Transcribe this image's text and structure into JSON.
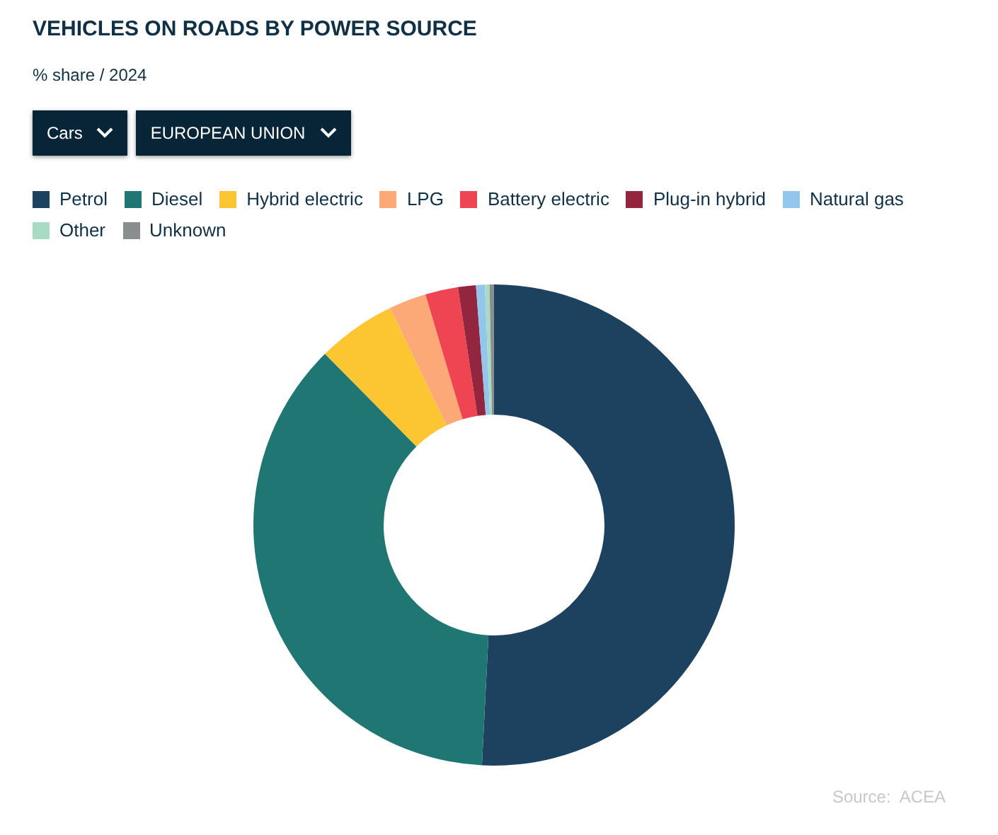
{
  "chart_data": {
    "type": "donut",
    "title": "VEHICLES ON ROADS BY POWER SOURCE",
    "subtitle": "% share / 2024",
    "categories": [
      "Petrol",
      "Diesel",
      "Hybrid electric",
      "LPG",
      "Battery electric",
      "Plug-in hybrid",
      "Natural gas",
      "Other",
      "Unknown"
    ],
    "values": [
      50.8,
      36.8,
      5.3,
      2.5,
      2.2,
      1.2,
      0.6,
      0.3,
      0.3
    ],
    "colors": [
      "#1d4260",
      "#1f7673",
      "#fcc633",
      "#fca877",
      "#ef4452",
      "#93253f",
      "#92c6ec",
      "#a9dbc2",
      "#8a8e8f"
    ],
    "legend": "top left",
    "annotations": [
      "Cars",
      "EUROPEAN UNION",
      "Source:  ACEA"
    ]
  }
}
